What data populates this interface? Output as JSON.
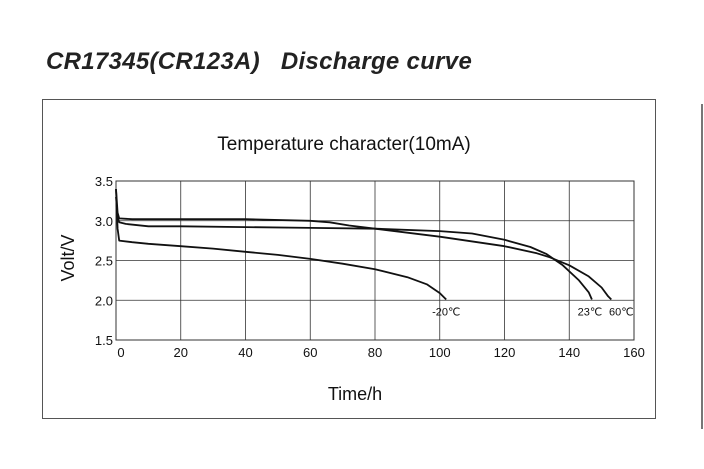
{
  "page": {
    "title": "CR17345(CR123A)   Discharge curve"
  },
  "chart_data": {
    "type": "line",
    "title": "Temperature character(10mA)",
    "xlabel": "Time/h",
    "ylabel": "Volt/V",
    "xlim": [
      0,
      160
    ],
    "ylim": [
      1.5,
      3.5
    ],
    "xticks": [
      0,
      20,
      40,
      60,
      80,
      100,
      120,
      140,
      160
    ],
    "yticks": [
      1.5,
      2.0,
      2.5,
      3.0,
      3.5
    ],
    "yticklabels": [
      "1.5",
      "2.0",
      "2.5",
      "3.0",
      "3.5"
    ],
    "grid": true,
    "line_color": "#111111",
    "series": [
      {
        "name": "-20℃",
        "x": [
          0,
          0.5,
          1,
          5,
          10,
          20,
          30,
          40,
          50,
          60,
          70,
          80,
          90,
          96,
          100,
          102
        ],
        "y": [
          3.4,
          2.9,
          2.75,
          2.73,
          2.71,
          2.68,
          2.65,
          2.61,
          2.57,
          2.52,
          2.46,
          2.39,
          2.29,
          2.2,
          2.09,
          2.01
        ]
      },
      {
        "name": "23℃",
        "x": [
          0,
          0.5,
          1,
          3,
          10,
          20,
          40,
          60,
          80,
          100,
          110,
          120,
          128,
          133,
          138,
          143,
          146,
          147
        ],
        "y": [
          3.3,
          3.05,
          2.98,
          2.96,
          2.93,
          2.93,
          2.92,
          2.91,
          2.9,
          2.87,
          2.84,
          2.76,
          2.67,
          2.58,
          2.44,
          2.25,
          2.1,
          2.01
        ]
      },
      {
        "name": "60℃",
        "x": [
          0,
          0.5,
          1,
          5,
          20,
          40,
          60,
          66,
          72,
          80,
          100,
          120,
          130,
          134,
          140,
          146,
          150,
          152,
          153
        ],
        "y": [
          3.4,
          3.1,
          3.03,
          3.02,
          3.02,
          3.02,
          3.0,
          2.98,
          2.94,
          2.9,
          2.8,
          2.68,
          2.59,
          2.54,
          2.44,
          2.3,
          2.16,
          2.05,
          2.01
        ]
      }
    ]
  }
}
